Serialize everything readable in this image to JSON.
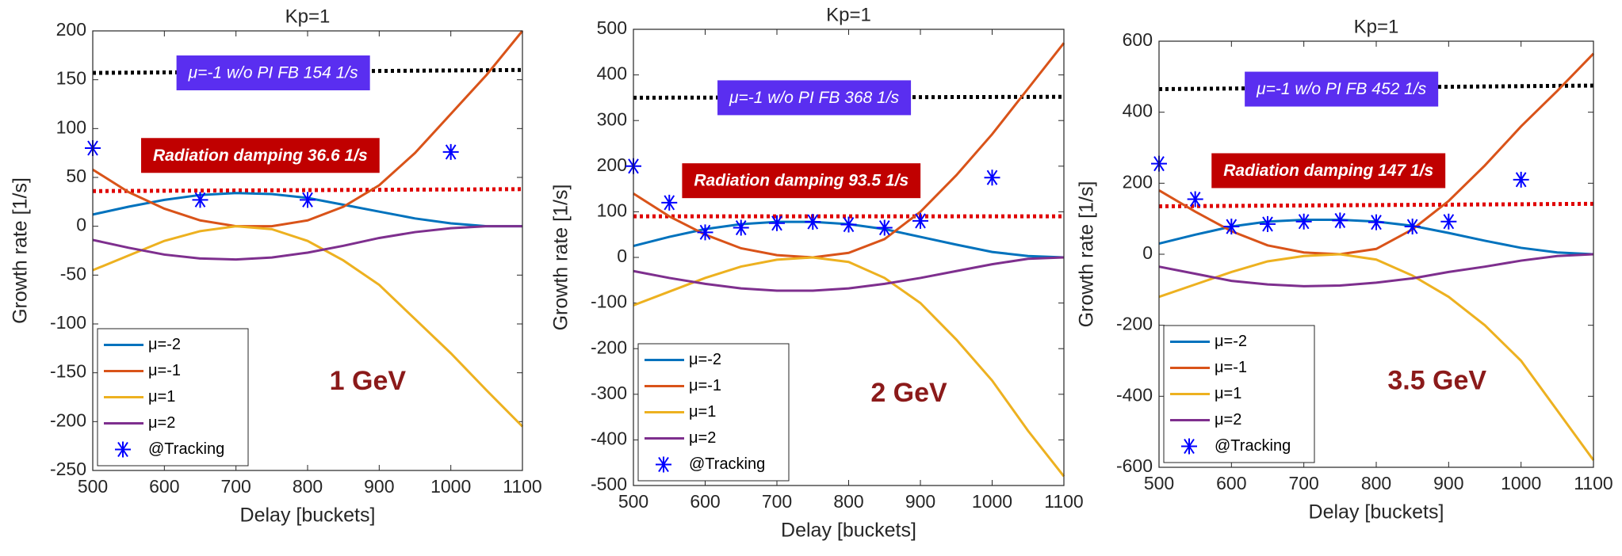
{
  "chart_data": [
    {
      "type": "line",
      "title": "Kp=1",
      "xlabel": "Delay [buckets]",
      "ylabel": "Growth rate [1/s]",
      "annotation": "1 GeV",
      "xlim": [
        500,
        1100
      ],
      "xticks": [
        500,
        600,
        700,
        800,
        900,
        1000,
        1100
      ],
      "ylim": [
        -250,
        200
      ],
      "yticks": [
        -250,
        -200,
        -150,
        -100,
        -50,
        0,
        50,
        100,
        150,
        200
      ],
      "x": [
        500,
        550,
        600,
        650,
        700,
        750,
        800,
        850,
        900,
        950,
        1000,
        1050,
        1100
      ],
      "series": [
        {
          "name": "μ=-2",
          "color": "#0072BD",
          "values": [
            12,
            20,
            27,
            32,
            34,
            33,
            29,
            22,
            15,
            8,
            3,
            0,
            0
          ]
        },
        {
          "name": "μ=-1",
          "color": "#D95319",
          "values": [
            58,
            35,
            18,
            6,
            0,
            0,
            6,
            20,
            42,
            75,
            115,
            155,
            200
          ]
        },
        {
          "name": "μ=1",
          "color": "#EDB120",
          "values": [
            -45,
            -30,
            -15,
            -5,
            0,
            -3,
            -15,
            -35,
            -60,
            -95,
            -130,
            -168,
            -205
          ]
        },
        {
          "name": "μ=2",
          "color": "#7E2F8E",
          "values": [
            -14,
            -22,
            -29,
            -33,
            -34,
            -32,
            -27,
            -20,
            -12,
            -6,
            -2,
            0,
            0
          ]
        },
        {
          "name": "@Tracking",
          "color": "#0000FF",
          "marker": "asterisk",
          "x": [
            500,
            650,
            800,
            1000
          ],
          "values": [
            80,
            27,
            27,
            76
          ]
        }
      ],
      "reference_lines": [
        {
          "label": "μ=-1 w/o PI FB 154 1/s",
          "color": "#000000",
          "box_color": "#5a2ef0",
          "values": [
            157,
            160
          ]
        },
        {
          "label": "Radiation damping 36.6 1/s",
          "color": "#e00000",
          "box_color": "#c00000",
          "values": [
            36,
            38
          ]
        }
      ]
    },
    {
      "type": "line",
      "title": "Kp=1",
      "xlabel": "Delay [buckets]",
      "ylabel": "Growth rate [1/s]",
      "annotation": "2 GeV",
      "xlim": [
        500,
        1100
      ],
      "xticks": [
        500,
        600,
        700,
        800,
        900,
        1000,
        1100
      ],
      "ylim": [
        -500,
        500
      ],
      "yticks": [
        -500,
        -400,
        -300,
        -200,
        -100,
        0,
        100,
        200,
        300,
        400,
        500
      ],
      "x": [
        500,
        550,
        600,
        650,
        700,
        750,
        800,
        850,
        900,
        950,
        1000,
        1050,
        1100
      ],
      "series": [
        {
          "name": "μ=-2",
          "color": "#0072BD",
          "values": [
            25,
            45,
            62,
            73,
            78,
            78,
            73,
            62,
            45,
            28,
            12,
            3,
            0
          ]
        },
        {
          "name": "μ=-1",
          "color": "#D95319",
          "values": [
            140,
            90,
            50,
            20,
            5,
            0,
            10,
            40,
            100,
            180,
            270,
            370,
            470
          ]
        },
        {
          "name": "μ=1",
          "color": "#EDB120",
          "values": [
            -105,
            -75,
            -45,
            -20,
            -5,
            0,
            -10,
            -45,
            -100,
            -180,
            -270,
            -380,
            -480
          ]
        },
        {
          "name": "μ=2",
          "color": "#7E2F8E",
          "values": [
            -30,
            -45,
            -58,
            -68,
            -73,
            -73,
            -68,
            -58,
            -45,
            -30,
            -15,
            -3,
            0
          ]
        },
        {
          "name": "@Tracking",
          "color": "#0000FF",
          "marker": "asterisk",
          "x": [
            500,
            550,
            600,
            650,
            700,
            750,
            800,
            850,
            900,
            1000
          ],
          "values": [
            200,
            120,
            55,
            65,
            75,
            78,
            72,
            65,
            80,
            175
          ]
        }
      ],
      "reference_lines": [
        {
          "label": "μ=-1 w/o PI FB 368 1/s",
          "color": "#000000",
          "box_color": "#5a2ef0",
          "values": [
            350,
            352
          ]
        },
        {
          "label": "Radiation damping 93.5 1/s",
          "color": "#e00000",
          "box_color": "#c00000",
          "values": [
            90,
            90
          ]
        }
      ]
    },
    {
      "type": "line",
      "title": "Kp=1",
      "xlabel": "Delay [buckets]",
      "ylabel": "Growth rate [1/s]",
      "annotation": "3.5 GeV",
      "xlim": [
        500,
        1100
      ],
      "xticks": [
        500,
        600,
        700,
        800,
        900,
        1000,
        1100
      ],
      "ylim": [
        -600,
        600
      ],
      "yticks": [
        -600,
        -400,
        -200,
        0,
        200,
        400,
        600
      ],
      "x": [
        500,
        550,
        600,
        650,
        700,
        750,
        800,
        850,
        900,
        950,
        1000,
        1050,
        1100
      ],
      "series": [
        {
          "name": "μ=-2",
          "color": "#0072BD",
          "values": [
            30,
            55,
            78,
            92,
            97,
            97,
            92,
            80,
            60,
            38,
            18,
            5,
            0
          ]
        },
        {
          "name": "μ=-1",
          "color": "#D95319",
          "values": [
            180,
            120,
            65,
            25,
            5,
            0,
            15,
            70,
            150,
            250,
            360,
            460,
            565
          ]
        },
        {
          "name": "μ=1",
          "color": "#EDB120",
          "values": [
            -120,
            -85,
            -50,
            -20,
            -5,
            0,
            -15,
            -60,
            -120,
            -200,
            -300,
            -440,
            -580
          ]
        },
        {
          "name": "μ=2",
          "color": "#7E2F8E",
          "values": [
            -35,
            -55,
            -75,
            -85,
            -90,
            -88,
            -80,
            -68,
            -50,
            -35,
            -18,
            -5,
            0
          ]
        },
        {
          "name": "@Tracking",
          "color": "#0000FF",
          "marker": "asterisk",
          "x": [
            500,
            550,
            600,
            650,
            700,
            750,
            800,
            850,
            900,
            1000
          ],
          "values": [
            255,
            155,
            78,
            85,
            92,
            95,
            90,
            78,
            92,
            210
          ]
        }
      ],
      "reference_lines": [
        {
          "label": "μ=-1 w/o PI FB 452 1/s",
          "color": "#000000",
          "box_color": "#5a2ef0",
          "values": [
            465,
            475
          ]
        },
        {
          "label": "Radiation damping 147 1/s",
          "color": "#e00000",
          "box_color": "#c00000",
          "values": [
            135,
            142
          ]
        }
      ]
    }
  ]
}
